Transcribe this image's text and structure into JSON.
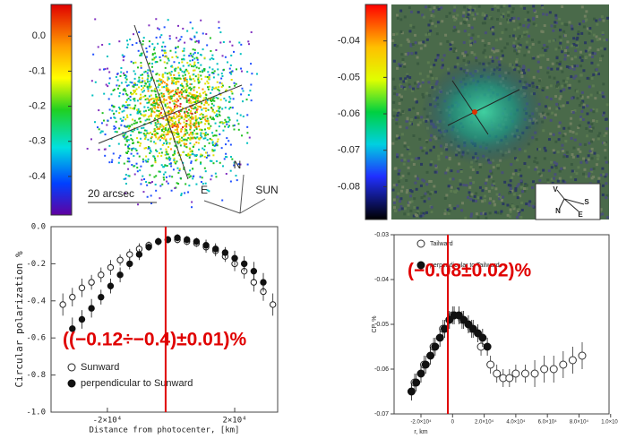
{
  "chart_data": [
    {
      "type": "image",
      "clim": [
        -0.51,
        0.09
      ],
      "cticks": [
        {
          "value": 0,
          "label": "0.0"
        },
        -0.1,
        -0.2,
        -0.3,
        -0.4
      ],
      "annotations": [
        "20 arcsec",
        "N",
        "E",
        "SUN"
      ]
    },
    {
      "type": "image",
      "clim": [
        -0.089,
        -0.03
      ],
      "cticks": [
        -0.04,
        -0.05,
        -0.06,
        -0.07,
        -0.08
      ],
      "annotations": [
        "V",
        "S",
        "N",
        "E"
      ]
    },
    {
      "type": "scatter",
      "ylabel": "Circular polarization  %",
      "xlabel": "Distance from photocenter, [km]",
      "xlim": [
        -37700,
        33500
      ],
      "ylim": [
        -1.0,
        0.0
      ],
      "xticks": [
        {
          "value": -20000,
          "label": "-2×10⁴"
        },
        {
          "value": 20000,
          "label": "2×10⁴"
        }
      ],
      "yticks": [
        {
          "value": -1.0,
          "label": "-1.0"
        },
        -0.8,
        -0.6,
        -0.4,
        -0.2,
        {
          "value": 0,
          "label": "0.0"
        }
      ],
      "vline": -1700,
      "vline_color": "#e00000",
      "annotation": "((−0.12÷−0.4)±0.01)%",
      "series": [
        {
          "name": "Sunward",
          "marker": "open",
          "color": "#222222",
          "x": [
            -34000,
            -31000,
            -28000,
            -25000,
            -22000,
            -19000,
            -16000,
            -13000,
            -10000,
            -7000,
            -4000,
            -1000,
            2000,
            5000,
            8000,
            11000,
            14000,
            17000,
            20000,
            23000,
            26000,
            29000,
            32000
          ],
          "values": [
            -0.42,
            -0.38,
            -0.33,
            -0.3,
            -0.26,
            -0.22,
            -0.18,
            -0.15,
            -0.12,
            -0.1,
            -0.08,
            -0.07,
            -0.07,
            -0.08,
            -0.09,
            -0.11,
            -0.13,
            -0.16,
            -0.2,
            -0.24,
            -0.3,
            -0.35,
            -0.42
          ],
          "errors": [
            0.06,
            0.05,
            0.05,
            0.04,
            0.04,
            0.04,
            0.03,
            0.03,
            0.03,
            0.02,
            0.02,
            0.02,
            0.02,
            0.02,
            0.02,
            0.03,
            0.03,
            0.03,
            0.04,
            0.04,
            0.05,
            0.05,
            0.06
          ]
        },
        {
          "name": "perpendicular to Sunward",
          "marker": "filled",
          "color": "#111111",
          "x": [
            -31000,
            -28000,
            -25000,
            -22000,
            -19000,
            -16000,
            -13000,
            -10000,
            -7000,
            -4000,
            -1000,
            2000,
            5000,
            8000,
            11000,
            14000,
            17000,
            20000,
            23000,
            26000,
            29000
          ],
          "values": [
            -0.55,
            -0.5,
            -0.44,
            -0.38,
            -0.32,
            -0.26,
            -0.2,
            -0.15,
            -0.11,
            -0.08,
            -0.07,
            -0.06,
            -0.07,
            -0.08,
            -0.1,
            -0.12,
            -0.14,
            -0.17,
            -0.2,
            -0.24,
            -0.3
          ],
          "errors": [
            0.06,
            0.05,
            0.05,
            0.04,
            0.04,
            0.04,
            0.03,
            0.03,
            0.02,
            0.02,
            0.02,
            0.02,
            0.02,
            0.02,
            0.03,
            0.03,
            0.03,
            0.04,
            0.04,
            0.05,
            0.05
          ]
        }
      ]
    },
    {
      "type": "scatter",
      "ylabel": "CP, %",
      "xlabel": "r, km",
      "xlim": [
        -37000,
        99000
      ],
      "ylim": [
        -0.07,
        -0.03
      ],
      "xticks": [
        {
          "value": -20000,
          "label": "-2.0×10⁴"
        },
        0,
        {
          "value": 20000,
          "label": "2.0×10⁴"
        },
        {
          "value": 40000,
          "label": "4.0×10⁴"
        },
        {
          "value": 60000,
          "label": "6.0×10⁴"
        },
        {
          "value": 80000,
          "label": "8.0×10⁴"
        },
        {
          "value": 100000,
          "label": "1.0×10⁵"
        }
      ],
      "yticks": [
        -0.07,
        -0.06,
        -0.05,
        -0.04,
        -0.03
      ],
      "vline": -3000,
      "vline_color": "#e00000",
      "annotation": "(−0.08±0.02)%",
      "series": [
        {
          "name": "Tailward",
          "marker": "open",
          "color": "#333333",
          "x": [
            -24000,
            -18000,
            -12000,
            -6000,
            0,
            6000,
            12000,
            18000,
            24000,
            28000,
            32000,
            36000,
            40000,
            46000,
            52000,
            58000,
            64000,
            70000,
            76000,
            82000
          ],
          "values": [
            -0.063,
            -0.059,
            -0.055,
            -0.051,
            -0.048,
            -0.049,
            -0.051,
            -0.055,
            -0.059,
            -0.061,
            -0.062,
            -0.062,
            -0.061,
            -0.061,
            -0.061,
            -0.06,
            -0.06,
            -0.059,
            -0.058,
            -0.057
          ],
          "errors": [
            0.002,
            0.002,
            0.002,
            0.002,
            0.002,
            0.002,
            0.002,
            0.002,
            0.002,
            0.002,
            0.002,
            0.002,
            0.002,
            0.002,
            0.003,
            0.003,
            0.003,
            0.003,
            0.003,
            0.003
          ]
        },
        {
          "name": "perpendicular to Tailward",
          "marker": "filled",
          "color": "#111111",
          "x": [
            -26000,
            -23000,
            -20000,
            -17000,
            -14000,
            -11000,
            -8000,
            -5000,
            -2000,
            1000,
            4000,
            7000,
            10000,
            13000,
            16000,
            19000,
            22000
          ],
          "values": [
            -0.065,
            -0.063,
            -0.061,
            -0.059,
            -0.057,
            -0.055,
            -0.053,
            -0.051,
            -0.049,
            -0.048,
            -0.048,
            -0.049,
            -0.05,
            -0.051,
            -0.052,
            -0.053,
            -0.055
          ],
          "errors": [
            0.002,
            0.002,
            0.002,
            0.002,
            0.002,
            0.002,
            0.002,
            0.002,
            0.002,
            0.002,
            0.002,
            0.002,
            0.002,
            0.002,
            0.002,
            0.002,
            0.002
          ]
        }
      ]
    }
  ]
}
